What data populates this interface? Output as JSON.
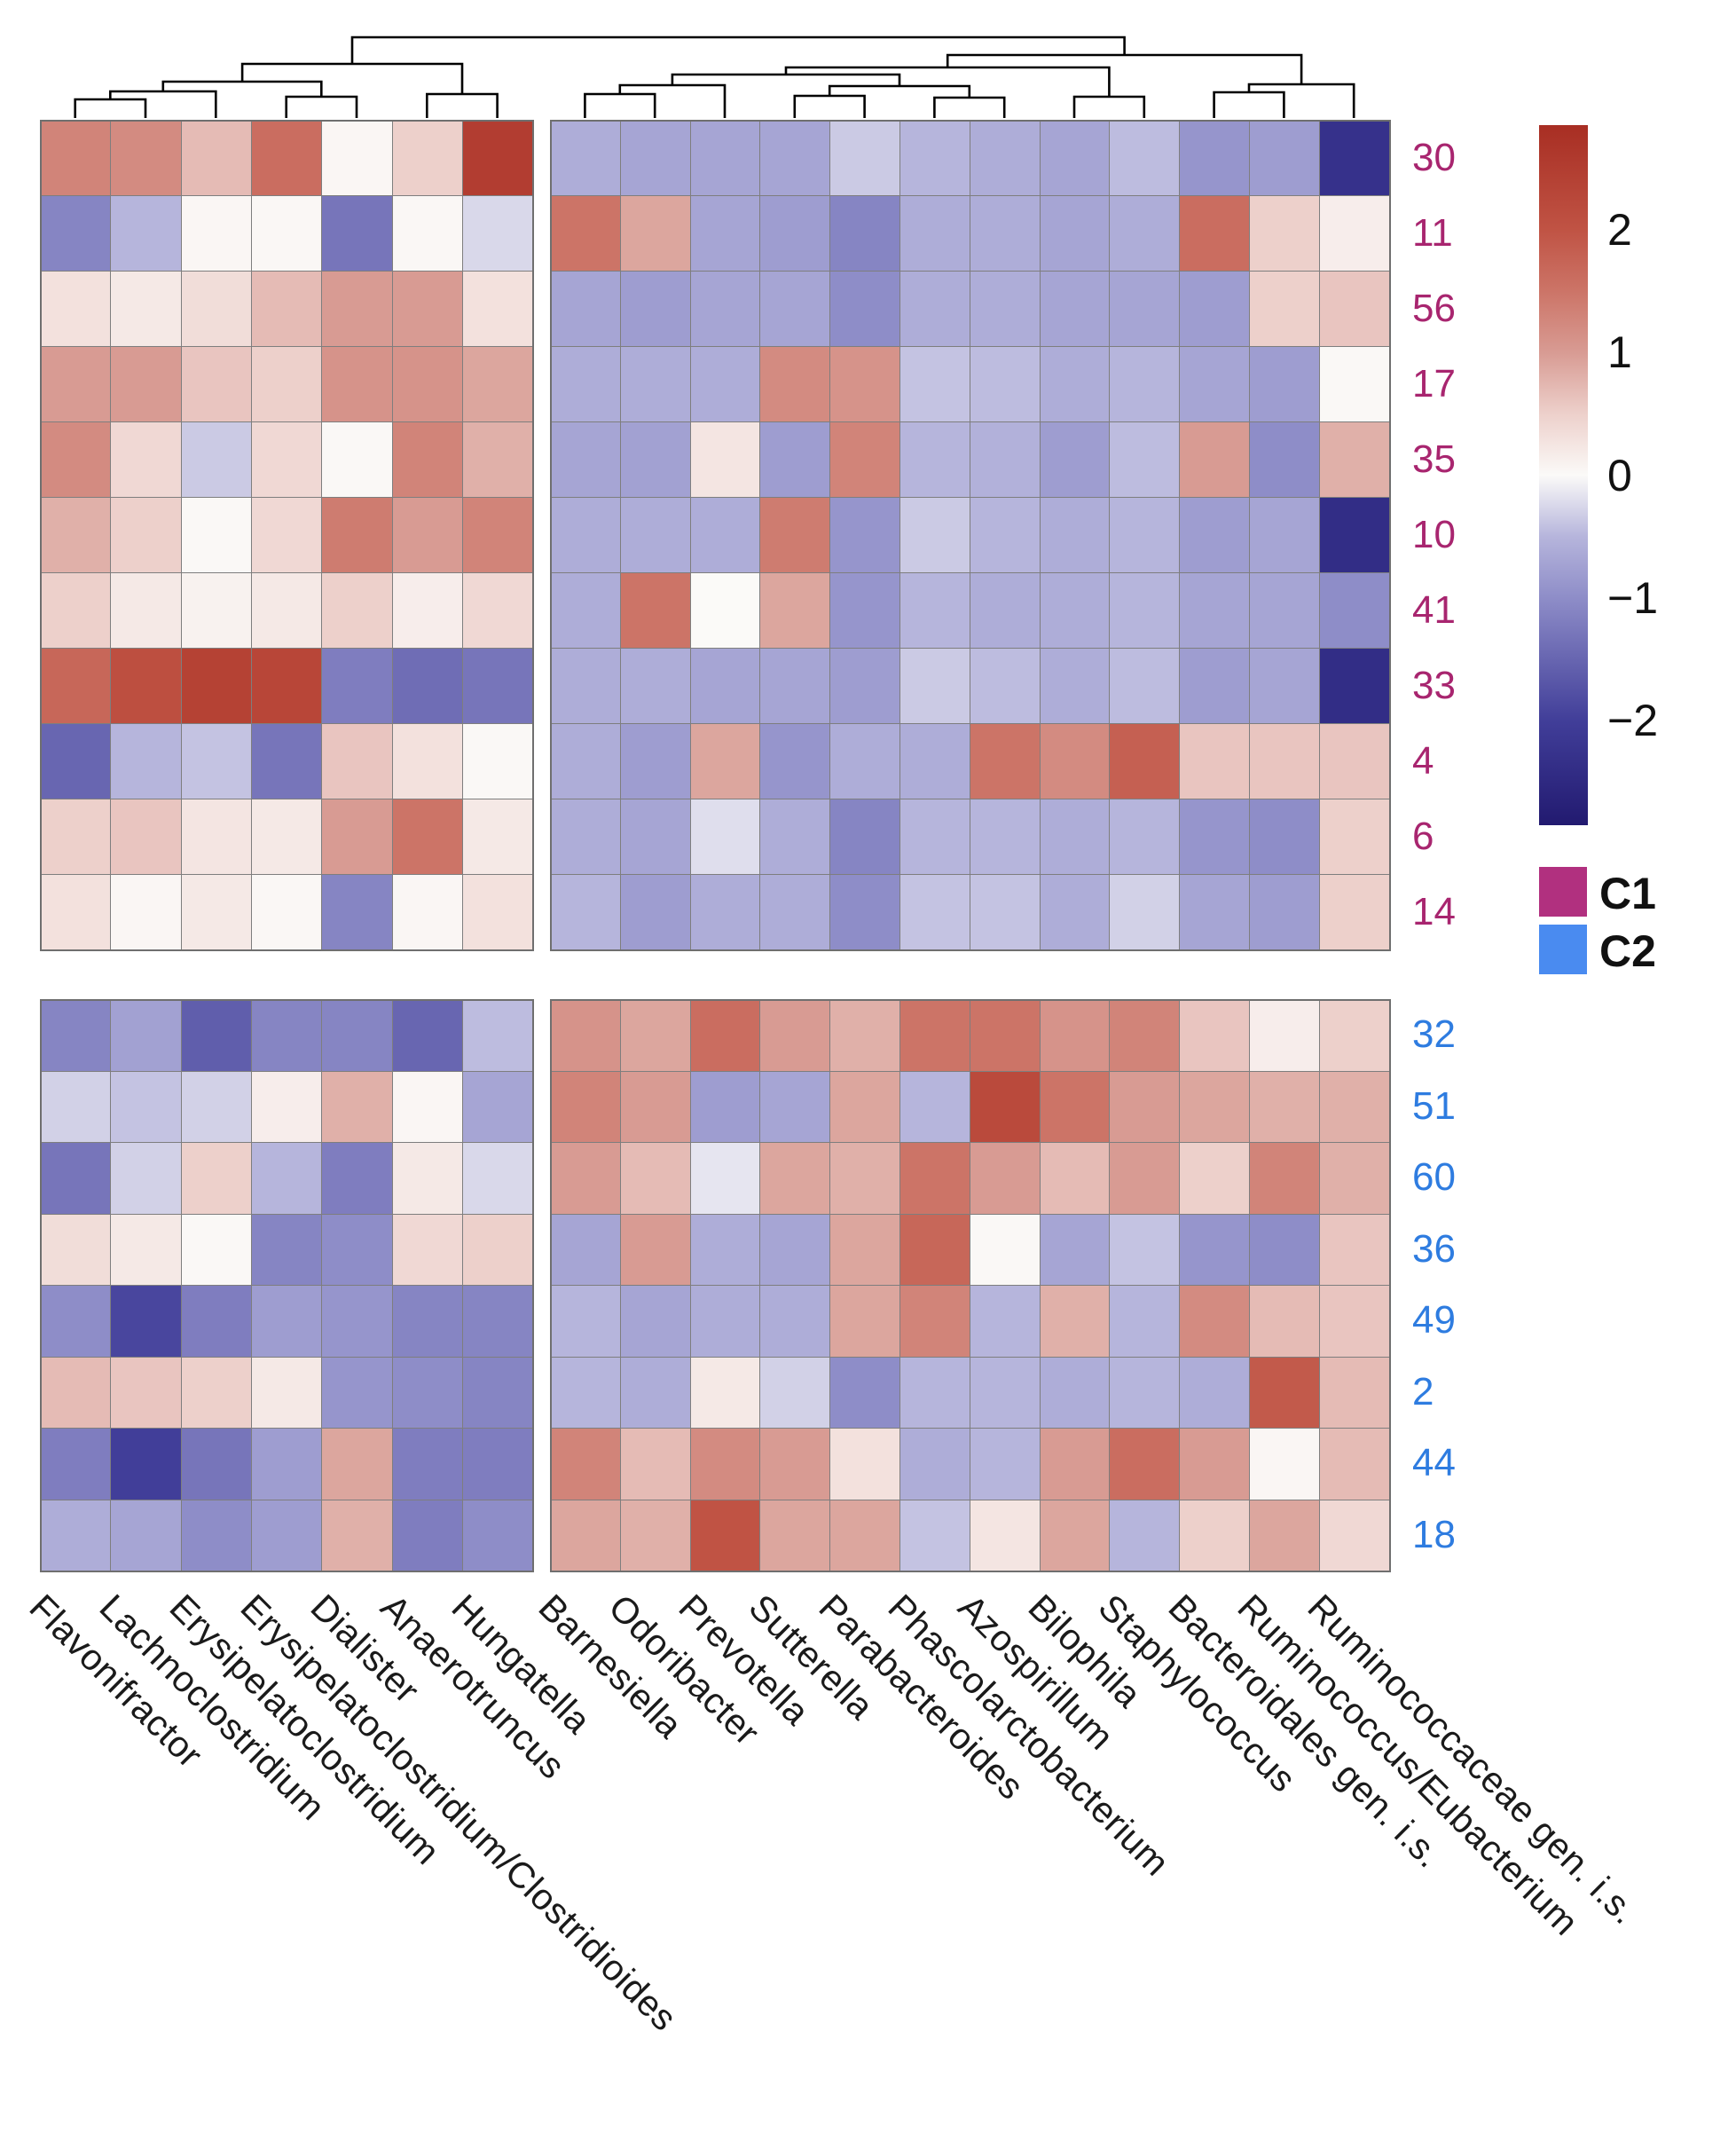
{
  "figure": {
    "colorbar": {
      "vmin": -2.85,
      "vmax": 2.85,
      "ticks": [
        "2",
        "1",
        "0",
        "−1",
        "−2"
      ],
      "tick_values": [
        2,
        1,
        0,
        -1,
        -2
      ]
    },
    "legend": {
      "items": [
        {
          "label": "C1",
          "color": "#b1307f"
        },
        {
          "label": "C2",
          "color": "#4a8bf0"
        }
      ]
    }
  },
  "chart_data": {
    "type": "heatmap",
    "title": "",
    "row_labels": [
      "30",
      "11",
      "56",
      "17",
      "35",
      "10",
      "41",
      "33",
      "4",
      "6",
      "14",
      "32",
      "51",
      "60",
      "36",
      "49",
      "2",
      "44",
      "18"
    ],
    "row_group_of_rows": [
      "C1",
      "C1",
      "C1",
      "C1",
      "C1",
      "C1",
      "C1",
      "C1",
      "C1",
      "C1",
      "C1",
      "C2",
      "C2",
      "C2",
      "C2",
      "C2",
      "C2",
      "C2",
      "C2"
    ],
    "row_label_colors": {
      "C1": "#a8256f",
      "C2": "#2e7ce0"
    },
    "row_split": 11,
    "col_labels": [
      "Flavonifractor",
      "Lachnoclostridium",
      "Erysipelatoclostridium",
      "Erysipelatoclostridium/Clostridioides",
      "Dialister",
      "Anaerotruncus",
      "Hungatella",
      "Barnesiella",
      "Odoribacter",
      "Prevotella",
      "Sutterella",
      "Parabacteroides",
      "Phascolarctobacterium",
      "Azospirillum",
      "Bilophila",
      "Staphylococcus",
      "Bacteroidales gen. i.s.",
      "Ruminococcus/Eubacterium",
      "Ruminococcaceae gen. i.s."
    ],
    "col_split": 7,
    "value_range": [
      -2.85,
      2.85
    ],
    "matrix": [
      [
        1.3,
        1.2,
        0.7,
        1.6,
        0.05,
        0.5,
        2.5,
        -0.6,
        -0.7,
        -0.7,
        -0.7,
        -0.35,
        -0.5,
        -0.6,
        -0.7,
        -0.45,
        -0.9,
        -0.8,
        -2.3
      ],
      [
        -1.1,
        -0.5,
        0.05,
        0.03,
        -1.3,
        0.03,
        -0.25,
        1.5,
        0.9,
        -0.7,
        -0.8,
        -1.1,
        -0.6,
        -0.6,
        -0.7,
        -0.6,
        1.6,
        0.5,
        0.15
      ],
      [
        0.3,
        0.2,
        0.35,
        0.7,
        1.0,
        1.0,
        0.3,
        -0.7,
        -0.8,
        -0.7,
        -0.7,
        -1.0,
        -0.6,
        -0.6,
        -0.7,
        -0.7,
        -0.8,
        0.5,
        0.6
      ],
      [
        1.0,
        1.0,
        0.6,
        0.5,
        1.1,
        1.1,
        0.9,
        -0.6,
        -0.6,
        -0.6,
        1.2,
        1.1,
        -0.4,
        -0.45,
        -0.6,
        -0.5,
        -0.7,
        -0.8,
        0.02
      ],
      [
        1.2,
        0.4,
        -0.35,
        0.4,
        0.02,
        1.3,
        0.8,
        -0.7,
        -0.75,
        0.25,
        -0.8,
        1.3,
        -0.5,
        -0.55,
        -0.8,
        -0.45,
        1.0,
        -1.0,
        0.8
      ],
      [
        0.8,
        0.5,
        0.02,
        0.4,
        1.4,
        1.0,
        1.3,
        -0.6,
        -0.6,
        -0.6,
        1.4,
        -0.9,
        -0.35,
        -0.5,
        -0.6,
        -0.5,
        -0.8,
        -0.7,
        -2.4
      ],
      [
        0.5,
        0.2,
        0.1,
        0.2,
        0.5,
        0.15,
        0.4,
        -0.6,
        1.5,
        0.0,
        0.9,
        -0.9,
        -0.5,
        -0.6,
        -0.6,
        -0.5,
        -0.7,
        -0.7,
        -1.0
      ],
      [
        1.7,
        2.1,
        2.4,
        2.3,
        -1.2,
        -1.4,
        -1.3,
        -0.6,
        -0.6,
        -0.7,
        -0.7,
        -0.8,
        -0.35,
        -0.45,
        -0.6,
        -0.45,
        -0.8,
        -0.7,
        -2.4
      ],
      [
        -1.5,
        -0.5,
        -0.4,
        -1.3,
        0.6,
        0.3,
        0.02,
        -0.6,
        -0.8,
        0.9,
        -0.9,
        -0.6,
        -0.6,
        1.5,
        1.2,
        1.8,
        0.6,
        0.6,
        0.6
      ],
      [
        0.5,
        0.6,
        0.25,
        0.2,
        1.0,
        1.5,
        0.2,
        -0.6,
        -0.7,
        -0.2,
        -0.6,
        -1.1,
        -0.5,
        -0.5,
        -0.6,
        -0.5,
        -0.9,
        -1.0,
        0.5
      ],
      [
        0.3,
        0.05,
        0.2,
        0.03,
        -1.1,
        0.05,
        0.3,
        -0.5,
        -0.8,
        -0.6,
        -0.6,
        -1.0,
        -0.4,
        -0.4,
        -0.6,
        -0.3,
        -0.7,
        -0.8,
        0.5
      ],
      [
        -1.1,
        -0.75,
        -1.6,
        -1.1,
        -1.1,
        -1.5,
        -0.45,
        1.1,
        0.9,
        1.6,
        1.0,
        0.8,
        1.5,
        1.5,
        1.1,
        1.3,
        0.6,
        0.15,
        0.5
      ],
      [
        -0.3,
        -0.4,
        -0.3,
        0.15,
        0.8,
        0.05,
        -0.7,
        1.3,
        1.0,
        -0.8,
        -0.7,
        0.9,
        -0.5,
        2.2,
        1.5,
        1.0,
        0.9,
        0.8,
        0.8
      ],
      [
        -1.3,
        -0.3,
        0.5,
        -0.5,
        -1.2,
        0.2,
        -0.25,
        1.0,
        0.7,
        -0.15,
        0.9,
        0.8,
        1.5,
        1.0,
        0.7,
        1.0,
        0.5,
        1.3,
        0.8
      ],
      [
        0.35,
        0.2,
        0.02,
        -1.1,
        -1.0,
        0.4,
        0.5,
        -0.7,
        1.0,
        -0.6,
        -0.7,
        0.9,
        1.7,
        0.02,
        -0.7,
        -0.4,
        -0.9,
        -1.0,
        0.6
      ],
      [
        -1.0,
        -1.9,
        -1.2,
        -0.8,
        -0.9,
        -1.1,
        -1.1,
        -0.5,
        -0.7,
        -0.6,
        -0.6,
        0.9,
        1.3,
        -0.5,
        0.8,
        -0.5,
        1.2,
        0.7,
        0.6
      ],
      [
        0.7,
        0.6,
        0.5,
        0.2,
        -0.9,
        -1.0,
        -1.1,
        -0.5,
        -0.6,
        0.2,
        -0.3,
        -1.0,
        -0.5,
        -0.5,
        -0.6,
        -0.5,
        -0.6,
        1.9,
        0.7
      ],
      [
        -1.2,
        -2.0,
        -1.3,
        -0.8,
        0.9,
        -1.2,
        -1.2,
        1.3,
        0.7,
        1.2,
        1.0,
        0.3,
        -0.6,
        -0.5,
        1.0,
        1.6,
        1.0,
        0.05,
        0.7
      ],
      [
        -0.6,
        -0.7,
        -1.0,
        -0.8,
        0.8,
        -1.2,
        -1.0,
        0.9,
        0.8,
        2.0,
        0.9,
        0.9,
        -0.4,
        0.25,
        0.9,
        -0.5,
        0.5,
        0.9,
        0.4
      ]
    ],
    "colormap": [
      {
        "v": -2.85,
        "c": "#221a70"
      },
      {
        "v": -2.0,
        "c": "#413e99"
      },
      {
        "v": -1.0,
        "c": "#8e8dc8"
      },
      {
        "v": -0.5,
        "c": "#b6b5dc"
      },
      {
        "v": 0.0,
        "c": "#fbfaf8"
      },
      {
        "v": 0.5,
        "c": "#edd0cb"
      },
      {
        "v": 1.0,
        "c": "#d89b93"
      },
      {
        "v": 1.5,
        "c": "#cc7467"
      },
      {
        "v": 2.0,
        "c": "#c05344"
      },
      {
        "v": 2.85,
        "c": "#a82e23"
      }
    ],
    "dendrogram": {
      "joins": [
        [
          "c0",
          "c1",
          112
        ],
        [
          "m0",
          "c2",
          103
        ],
        [
          "c3",
          "c4",
          109
        ],
        [
          "m1",
          "m2",
          92
        ],
        [
          "c5",
          "c6",
          106
        ],
        [
          "m3",
          "m4",
          72
        ],
        [
          "c7",
          "c8",
          106
        ],
        [
          "m6",
          "c9",
          96
        ],
        [
          "c10",
          "c11",
          108
        ],
        [
          "c12",
          "c13",
          110
        ],
        [
          "m8",
          "m9",
          97
        ],
        [
          "m7",
          "m10",
          84
        ],
        [
          "c14",
          "c15",
          109
        ],
        [
          "m11",
          "m12",
          76
        ],
        [
          "c16",
          "c17",
          104
        ],
        [
          "m14",
          "c18",
          95
        ],
        [
          "m13",
          "m15",
          62
        ],
        [
          "m5",
          "m16",
          42
        ]
      ]
    }
  }
}
